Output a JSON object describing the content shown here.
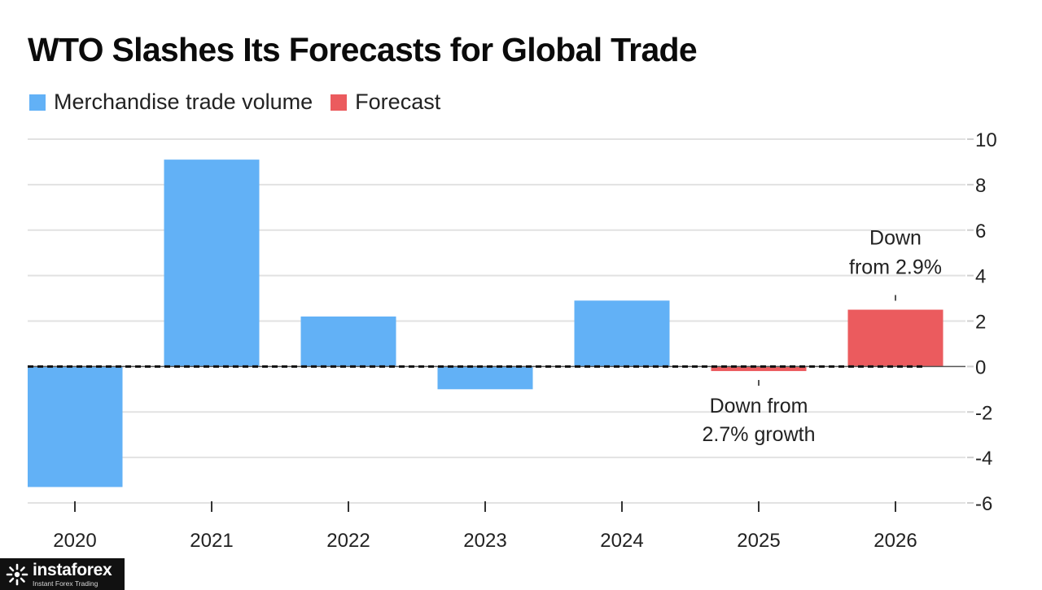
{
  "chart_data": {
    "type": "bar",
    "title": "WTO Slashes Its Forecasts for Global Trade",
    "xlabel": "",
    "ylabel": "",
    "categories": [
      "2020",
      "2021",
      "2022",
      "2023",
      "2024",
      "2025",
      "2026"
    ],
    "series": [
      {
        "name": "Merchandise trade volume",
        "color": "#62b1f6",
        "values": [
          -5.3,
          9.1,
          2.2,
          -1.0,
          2.9,
          null,
          null
        ]
      },
      {
        "name": "Forecast",
        "color": "#eb5b5e",
        "values": [
          null,
          null,
          null,
          null,
          null,
          -0.2,
          2.5
        ]
      }
    ],
    "ylim": [
      -6,
      10
    ],
    "yticks": [
      10,
      8,
      6,
      4,
      2,
      0,
      -2,
      -4,
      -6
    ],
    "ytick_labels": [
      "10",
      "8",
      "6",
      "4",
      "2",
      "0",
      "-2",
      "-4",
      "-6"
    ],
    "y_axis_side": "right",
    "grid": true,
    "zero_line": "dashed",
    "legend": "top-left",
    "annotations": [
      {
        "category": "2025",
        "lines": [
          "Down from",
          "2.7% growth"
        ],
        "placement": "below"
      },
      {
        "category": "2026",
        "lines": [
          "Down",
          "from 2.9%"
        ],
        "placement": "above"
      }
    ]
  },
  "watermark": {
    "brand": "instaforex",
    "tagline": "Instant Forex Trading",
    "icon": "instaforex-logo-icon"
  }
}
